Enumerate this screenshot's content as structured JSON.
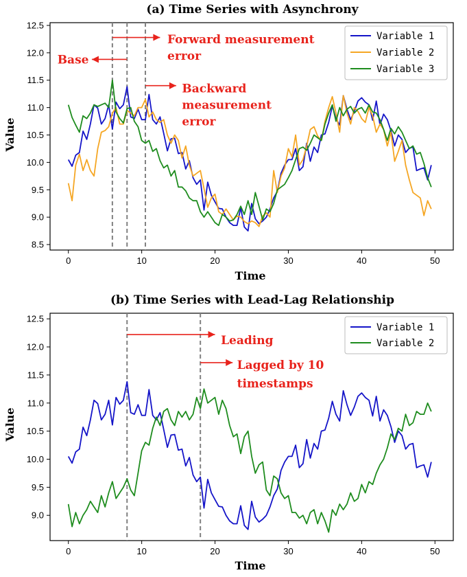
{
  "chart_data": [
    {
      "type": "line",
      "title": "(a) Time Series with Asynchrony",
      "xlabel": "Time",
      "ylabel": "Value",
      "xlim": [
        -2.5,
        52.5
      ],
      "ylim": [
        8.4,
        12.55
      ],
      "xticks": [
        0,
        10,
        20,
        30,
        40,
        50
      ],
      "yticks": [
        8.5,
        9.0,
        9.5,
        10.0,
        10.5,
        11.0,
        11.5,
        12.0,
        12.5
      ],
      "grid": false,
      "legend_position": "top-right",
      "vlines": [
        6,
        8,
        10.5
      ],
      "annotations": [
        {
          "text": "Forward measurement",
          "x": 13.5,
          "y": 12.25,
          "arrow_from": 6,
          "arrow_to": 12.5,
          "arrow_y": 12.28,
          "arrow_dir": "right"
        },
        {
          "text": "error",
          "x": 13.5,
          "y": 11.95
        },
        {
          "text": "Base",
          "x": -1.5,
          "y": 11.88,
          "arrow_from": 8,
          "arrow_to": 3.2,
          "arrow_y": 11.88,
          "arrow_dir": "left"
        },
        {
          "text": "Backward",
          "x": 15.5,
          "y": 11.35,
          "arrow_from": 10.5,
          "arrow_to": 14.7,
          "arrow_y": 11.4,
          "arrow_dir": "right"
        },
        {
          "text": "measurement",
          "x": 15.5,
          "y": 11.05
        },
        {
          "text": "error",
          "x": 15.5,
          "y": 10.75
        }
      ],
      "x": [
        0,
        0.5,
        1,
        1.5,
        2,
        2.5,
        3,
        3.5,
        4,
        4.5,
        5,
        5.5,
        6,
        6.5,
        7,
        7.5,
        8,
        8.5,
        9,
        9.5,
        10,
        10.5,
        11,
        11.5,
        12,
        12.5,
        13,
        13.5,
        14,
        14.5,
        15,
        15.5,
        16,
        16.5,
        17,
        17.5,
        18,
        18.5,
        19,
        19.5,
        20,
        20.5,
        21,
        21.5,
        22,
        22.5,
        23,
        23.5,
        24,
        24.5,
        25,
        25.5,
        26,
        26.5,
        27,
        27.5,
        28,
        28.5,
        29,
        29.5,
        30,
        30.5,
        31,
        31.5,
        32,
        32.5,
        33,
        33.5,
        34,
        34.5,
        35,
        35.5,
        36,
        36.5,
        37,
        37.5,
        38,
        38.5,
        39,
        39.5,
        40,
        40.5,
        41,
        41.5,
        42,
        42.5,
        43,
        43.5,
        44,
        44.5,
        45,
        45.5,
        46,
        46.5,
        47,
        47.5,
        48,
        48.5,
        49,
        49.5
      ],
      "series": [
        {
          "name": "Variable 1",
          "color": "#1414c8",
          "values": [
            10.05,
            9.93,
            10.13,
            10.18,
            10.57,
            10.42,
            10.7,
            11.05,
            10.99,
            10.7,
            10.8,
            11.05,
            10.61,
            11.1,
            10.98,
            11.05,
            11.38,
            10.83,
            10.8,
            10.97,
            10.78,
            10.78,
            11.24,
            10.78,
            10.7,
            10.83,
            10.53,
            10.21,
            10.43,
            10.44,
            10.16,
            10.18,
            9.88,
            10.03,
            9.72,
            9.6,
            9.68,
            9.13,
            9.64,
            9.4,
            9.28,
            9.16,
            9.15,
            9.0,
            8.9,
            8.85,
            8.85,
            9.17,
            8.82,
            8.75,
            9.25,
            8.97,
            8.88,
            8.93,
            9.0,
            9.15,
            9.35,
            9.47,
            9.8,
            9.95,
            10.05,
            10.05,
            10.25,
            9.85,
            9.92,
            10.35,
            10.02,
            10.28,
            10.18,
            10.5,
            10.52,
            10.73,
            11.03,
            10.8,
            10.68,
            11.22,
            10.97,
            10.78,
            10.93,
            11.12,
            11.18,
            11.1,
            11.05,
            10.77,
            11.12,
            10.68,
            10.88,
            10.78,
            10.58,
            10.3,
            10.5,
            10.42,
            10.18,
            10.26,
            10.28,
            9.85,
            9.88,
            9.9,
            9.68,
            9.95
          ]
        },
        {
          "name": "Variable 2",
          "color": "#f5a623",
          "values": [
            9.62,
            9.3,
            9.95,
            10.15,
            9.85,
            10.05,
            9.85,
            9.75,
            10.25,
            10.55,
            10.58,
            10.65,
            10.9,
            11.0,
            10.7,
            10.7,
            10.95,
            10.9,
            10.85,
            11.0,
            11.0,
            11.15,
            10.83,
            10.92,
            10.78,
            10.73,
            10.78,
            10.5,
            10.35,
            10.5,
            10.4,
            10.08,
            10.3,
            9.95,
            9.75,
            9.8,
            9.85,
            9.52,
            9.18,
            9.35,
            9.42,
            9.1,
            9.05,
            9.15,
            9.05,
            8.95,
            9.02,
            9.0,
            8.92,
            8.88,
            8.93,
            8.9,
            8.83,
            9.02,
            9.08,
            9.0,
            9.85,
            9.45,
            9.75,
            9.9,
            10.25,
            10.1,
            10.5,
            9.95,
            10.05,
            10.3,
            10.6,
            10.65,
            10.48,
            10.4,
            10.75,
            11.0,
            11.2,
            10.9,
            10.55,
            11.22,
            10.9,
            10.7,
            11.0,
            10.93,
            10.8,
            10.73,
            11.0,
            10.85,
            10.55,
            10.7,
            10.6,
            10.3,
            10.55,
            10.02,
            10.2,
            10.4,
            9.95,
            9.68,
            9.45,
            9.4,
            9.35,
            9.03,
            9.3,
            9.15
          ]
        },
        {
          "name": "Variable 3",
          "color": "#1e8c1e",
          "values": [
            11.05,
            10.82,
            10.68,
            10.55,
            10.85,
            10.8,
            10.9,
            11.05,
            11.02,
            11.05,
            11.08,
            11.0,
            11.5,
            10.92,
            10.8,
            10.72,
            10.98,
            11.0,
            10.75,
            10.65,
            10.4,
            10.35,
            10.4,
            10.2,
            10.25,
            10.03,
            9.9,
            9.95,
            9.75,
            9.85,
            9.55,
            9.55,
            9.48,
            9.35,
            9.3,
            9.3,
            9.1,
            9.0,
            9.1,
            9.0,
            8.9,
            8.85,
            9.05,
            9.0,
            8.93,
            8.95,
            9.05,
            9.2,
            9.05,
            9.3,
            9.05,
            9.45,
            9.2,
            8.95,
            9.15,
            9.1,
            9.25,
            9.5,
            9.55,
            9.6,
            9.72,
            9.85,
            10.05,
            10.25,
            10.28,
            10.22,
            10.35,
            10.5,
            10.45,
            10.4,
            10.7,
            10.9,
            11.05,
            10.75,
            11.0,
            10.85,
            10.97,
            11.02,
            10.9,
            10.97,
            11.0,
            10.9,
            11.05,
            10.92,
            10.9,
            10.78,
            10.6,
            10.4,
            10.62,
            10.52,
            10.65,
            10.55,
            10.4,
            10.25,
            10.3,
            10.15,
            10.18,
            9.98,
            9.72,
            9.55
          ]
        }
      ]
    },
    {
      "type": "line",
      "title": "(b) Time Series with Lead-Lag Relationship",
      "xlabel": "Time",
      "ylabel": "Value",
      "xlim": [
        -2.5,
        52.5
      ],
      "ylim": [
        8.55,
        12.6
      ],
      "xticks": [
        0,
        10,
        20,
        30,
        40,
        50
      ],
      "yticks": [
        9.0,
        9.5,
        10.0,
        10.5,
        11.0,
        11.5,
        12.0,
        12.5
      ],
      "grid": false,
      "legend_position": "top-right",
      "vlines": [
        8,
        18
      ],
      "annotations": [
        {
          "text": "Leading",
          "x": 20.8,
          "y": 12.12,
          "arrow_from": 8,
          "arrow_to": 20.0,
          "arrow_y": 12.22,
          "arrow_dir": "right"
        },
        {
          "text": "Lagged by 10",
          "x": 23,
          "y": 11.68,
          "arrow_from": 18,
          "arrow_to": 22.4,
          "arrow_y": 11.72,
          "arrow_dir": "right"
        },
        {
          "text": "timestamps",
          "x": 23,
          "y": 11.35
        }
      ],
      "x": [
        0,
        0.5,
        1,
        1.5,
        2,
        2.5,
        3,
        3.5,
        4,
        4.5,
        5,
        5.5,
        6,
        6.5,
        7,
        7.5,
        8,
        8.5,
        9,
        9.5,
        10,
        10.5,
        11,
        11.5,
        12,
        12.5,
        13,
        13.5,
        14,
        14.5,
        15,
        15.5,
        16,
        16.5,
        17,
        17.5,
        18,
        18.5,
        19,
        19.5,
        20,
        20.5,
        21,
        21.5,
        22,
        22.5,
        23,
        23.5,
        24,
        24.5,
        25,
        25.5,
        26,
        26.5,
        27,
        27.5,
        28,
        28.5,
        29,
        29.5,
        30,
        30.5,
        31,
        31.5,
        32,
        32.5,
        33,
        33.5,
        34,
        34.5,
        35,
        35.5,
        36,
        36.5,
        37,
        37.5,
        38,
        38.5,
        39,
        39.5,
        40,
        40.5,
        41,
        41.5,
        42,
        42.5,
        43,
        43.5,
        44,
        44.5,
        45,
        45.5,
        46,
        46.5,
        47,
        47.5,
        48,
        48.5,
        49,
        49.5
      ],
      "series": [
        {
          "name": "Variable 1",
          "color": "#1414c8",
          "values": [
            10.05,
            9.93,
            10.13,
            10.18,
            10.57,
            10.42,
            10.7,
            11.05,
            10.99,
            10.7,
            10.8,
            11.05,
            10.61,
            11.1,
            10.98,
            11.05,
            11.38,
            10.83,
            10.8,
            10.97,
            10.78,
            10.78,
            11.24,
            10.78,
            10.7,
            10.83,
            10.53,
            10.21,
            10.43,
            10.44,
            10.16,
            10.18,
            9.88,
            10.03,
            9.72,
            9.6,
            9.68,
            9.13,
            9.64,
            9.4,
            9.28,
            9.16,
            9.15,
            9.0,
            8.9,
            8.85,
            8.85,
            9.17,
            8.82,
            8.75,
            9.25,
            8.97,
            8.88,
            8.93,
            9.0,
            9.15,
            9.35,
            9.47,
            9.8,
            9.95,
            10.05,
            10.05,
            10.25,
            9.85,
            9.92,
            10.35,
            10.02,
            10.28,
            10.18,
            10.5,
            10.52,
            10.73,
            11.03,
            10.8,
            10.68,
            11.22,
            10.97,
            10.78,
            10.93,
            11.12,
            11.18,
            11.1,
            11.05,
            10.77,
            11.12,
            10.68,
            10.88,
            10.78,
            10.58,
            10.3,
            10.5,
            10.42,
            10.18,
            10.26,
            10.28,
            9.85,
            9.88,
            9.9,
            9.68,
            9.95
          ]
        },
        {
          "name": "Variable 2",
          "color": "#1e8c1e",
          "values": [
            9.2,
            8.8,
            9.05,
            8.85,
            9.0,
            9.1,
            9.25,
            9.15,
            9.05,
            9.35,
            9.15,
            9.4,
            9.6,
            9.3,
            9.4,
            9.5,
            9.65,
            9.45,
            9.35,
            9.75,
            10.15,
            10.3,
            10.25,
            10.55,
            10.75,
            10.6,
            10.85,
            10.9,
            10.7,
            10.6,
            10.85,
            10.75,
            10.85,
            10.7,
            10.8,
            11.1,
            10.9,
            11.25,
            11.0,
            11.05,
            11.1,
            10.8,
            11.05,
            10.9,
            10.6,
            10.4,
            10.45,
            10.1,
            10.4,
            10.5,
            10.05,
            9.75,
            9.9,
            9.95,
            9.45,
            9.35,
            9.7,
            9.65,
            9.4,
            9.3,
            9.35,
            9.05,
            9.05,
            8.95,
            9.0,
            8.85,
            9.05,
            9.1,
            8.85,
            9.05,
            8.9,
            8.7,
            9.1,
            9.0,
            9.2,
            9.1,
            9.2,
            9.4,
            9.25,
            9.3,
            9.55,
            9.4,
            9.6,
            9.55,
            9.75,
            9.9,
            10.0,
            10.2,
            10.45,
            10.35,
            10.55,
            10.5,
            10.8,
            10.6,
            10.65,
            10.85,
            10.8,
            10.8,
            11.0,
            10.85
          ]
        }
      ]
    }
  ]
}
